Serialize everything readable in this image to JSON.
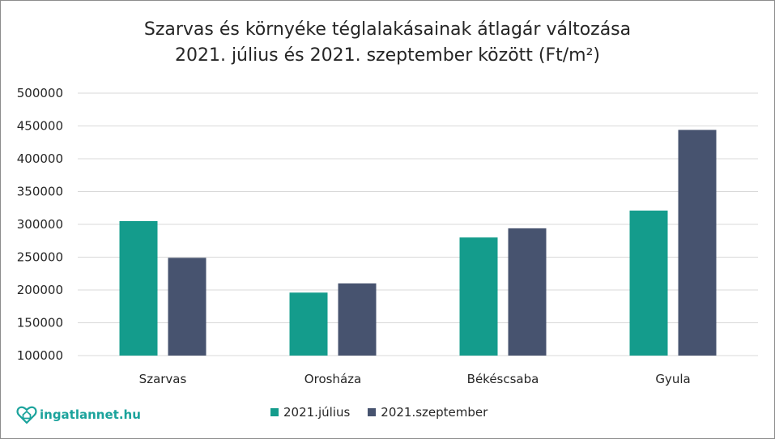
{
  "title_line1": "Szarvas és környéke téglalakásainak átlagár változása",
  "title_line2": "2021. július és 2021. szeptember között (Ft/m²)",
  "logo_text": "ingatlannet.hu",
  "colors": {
    "series1": "#149c8c",
    "series2": "#47536f",
    "grid": "#d9d9d9",
    "text": "#262626",
    "brand": "#1ba39c"
  },
  "chart_data": {
    "type": "bar",
    "categories": [
      "Szarvas",
      "Orosháza",
      "Békéscsaba",
      "Gyula"
    ],
    "series": [
      {
        "name": "2021.július",
        "values": [
          305000,
          196000,
          280000,
          321000
        ]
      },
      {
        "name": "2021.szeptember",
        "values": [
          249000,
          210000,
          294000,
          444000
        ]
      }
    ],
    "ylim": [
      100000,
      500000
    ],
    "yticks": [
      "100000",
      "150000",
      "200000",
      "250000",
      "300000",
      "350000",
      "400000",
      "450000",
      "500000"
    ],
    "grid": true,
    "legend": "bottom"
  }
}
